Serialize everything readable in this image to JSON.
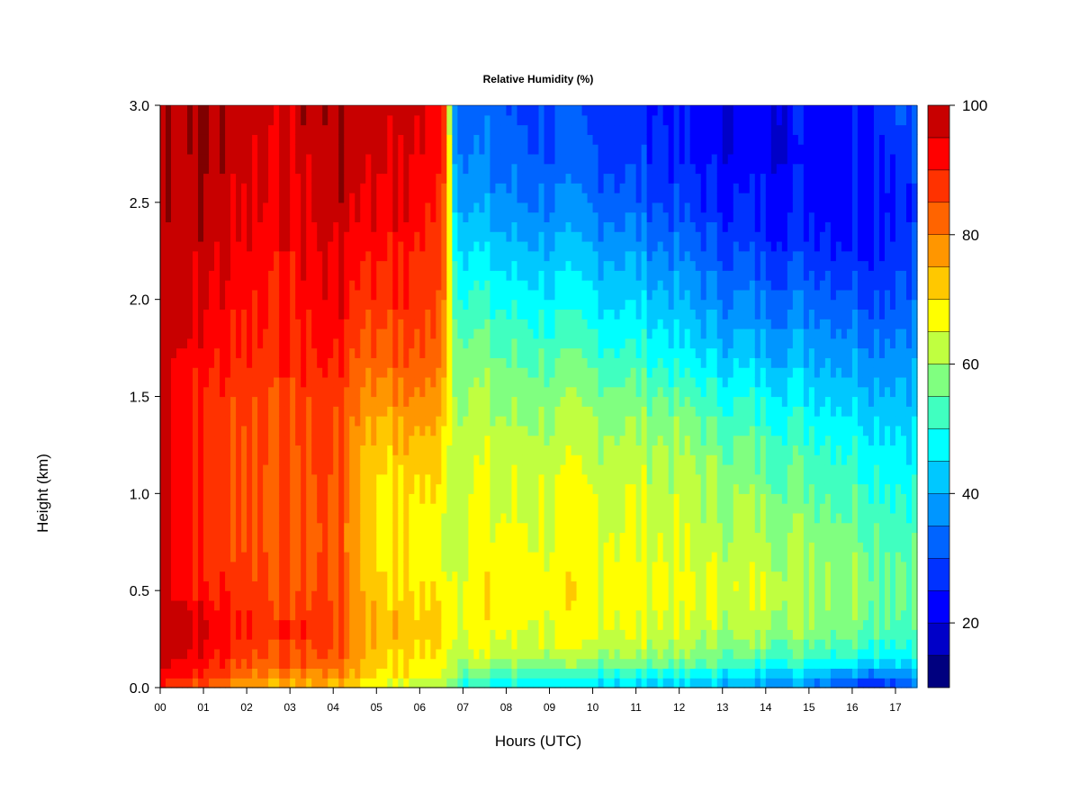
{
  "chart_data": {
    "type": "heatmap",
    "title": "Relative Humidity (%)",
    "xlabel": "Hours (UTC)",
    "ylabel": "Height (km)",
    "xlim": [
      0,
      17.5
    ],
    "ylim": [
      0,
      3.0
    ],
    "x_tick_values": [
      0,
      1,
      2,
      3,
      4,
      5,
      6,
      7,
      8,
      9,
      10,
      11,
      12,
      13,
      14,
      15,
      16,
      17
    ],
    "x_tick_labels": [
      "00",
      "01",
      "02",
      "03",
      "04",
      "05",
      "06",
      "07",
      "08",
      "09",
      "10",
      "11",
      "12",
      "13",
      "14",
      "15",
      "16",
      "17"
    ],
    "y_tick_values": [
      0.0,
      0.5,
      1.0,
      1.5,
      2.0,
      2.5,
      3.0
    ],
    "y_tick_labels": [
      "0.0",
      "0.5",
      "1.0",
      "1.5",
      "2.0",
      "2.5",
      "3.0"
    ],
    "heights_km": [
      0.02,
      0.08,
      0.15,
      0.3,
      0.5,
      0.75,
      1.0,
      1.25,
      1.5,
      1.75,
      2.0,
      2.25,
      2.5,
      2.75,
      3.0
    ],
    "hours_utc": [
      0,
      0.5,
      1,
      1.5,
      2,
      2.5,
      3,
      3.5,
      4,
      4.5,
      5,
      5.5,
      6,
      6.5,
      7,
      7.5,
      8,
      8.5,
      9,
      9.5,
      10,
      10.5,
      11,
      11.5,
      12,
      12.5,
      13,
      13.5,
      14,
      14.5,
      15,
      15.5,
      16,
      16.5,
      17,
      17.5
    ],
    "colorbar": {
      "min": 10,
      "max": 100,
      "step": 5,
      "tick_values": [
        20,
        40,
        60,
        80,
        100
      ],
      "tick_labels": [
        "20",
        "40",
        "60",
        "80",
        "100"
      ],
      "colors": [
        "#00007F",
        "#0000C8",
        "#0000FF",
        "#0032FF",
        "#0064FF",
        "#0096FF",
        "#00C8FF",
        "#00FFFF",
        "#40FFC0",
        "#80FF80",
        "#C0FF40",
        "#FFFF00",
        "#FFC800",
        "#FF9600",
        "#FF6400",
        "#FF3200",
        "#FF0000",
        "#C80000",
        "#7F0000"
      ]
    },
    "profiles": [
      {
        "hour": 0,
        "rh": [
          90,
          95,
          100,
          100,
          100,
          100,
          100,
          100,
          100,
          100,
          100,
          100,
          100,
          100,
          100
        ]
      },
      {
        "hour": 1,
        "rh": [
          85,
          90,
          92,
          96,
          90,
          88,
          87,
          88,
          89,
          92,
          95,
          97,
          99,
          100,
          100
        ]
      },
      {
        "hour": 2,
        "rh": [
          78,
          82,
          86,
          90,
          88,
          86,
          85,
          86,
          87,
          90,
          92,
          94,
          96,
          97,
          98
        ]
      },
      {
        "hour": 3,
        "rh": [
          75,
          80,
          84,
          88,
          85,
          83,
          84,
          85,
          86,
          89,
          90,
          92,
          94,
          95,
          97
        ]
      },
      {
        "hour": 4,
        "rh": [
          76,
          80,
          85,
          88,
          86,
          85,
          86,
          87,
          88,
          92,
          95,
          96,
          98,
          99,
          100
        ]
      },
      {
        "hour": 4.7,
        "rh": [
          70,
          74,
          76,
          78,
          76,
          74,
          74,
          76,
          80,
          84,
          88,
          92,
          95,
          97,
          98
        ]
      },
      {
        "hour": 5,
        "rh": [
          66,
          70,
          72,
          75,
          72,
          70,
          70,
          72,
          78,
          84,
          88,
          92,
          95,
          97,
          98
        ]
      },
      {
        "hour": 6,
        "rh": [
          64,
          68,
          70,
          72,
          70,
          68,
          70,
          74,
          80,
          86,
          88,
          90,
          93,
          95,
          97
        ]
      },
      {
        "hour": 6.6,
        "rh": [
          62,
          66,
          68,
          70,
          68,
          66,
          68,
          70,
          75,
          80,
          82,
          84,
          86,
          88,
          88
        ]
      },
      {
        "hour": 6.8,
        "rh": [
          58,
          62,
          64,
          66,
          66,
          64,
          64,
          62,
          60,
          58,
          54,
          50,
          45,
          40,
          38
        ]
      },
      {
        "hour": 7,
        "rh": [
          52,
          58,
          64,
          68,
          68,
          66,
          66,
          64,
          62,
          58,
          52,
          46,
          40,
          36,
          34
        ]
      },
      {
        "hour": 8,
        "rh": [
          48,
          54,
          62,
          66,
          68,
          66,
          64,
          62,
          58,
          54,
          48,
          42,
          36,
          32,
          30
        ]
      },
      {
        "hour": 10,
        "rh": [
          46,
          52,
          60,
          66,
          68,
          66,
          65,
          62,
          58,
          52,
          46,
          40,
          34,
          30,
          28
        ]
      },
      {
        "hour": 11,
        "rh": [
          46,
          52,
          60,
          66,
          67,
          66,
          64,
          62,
          57,
          50,
          44,
          38,
          32,
          28,
          27
        ]
      },
      {
        "hour": 12,
        "rh": [
          44,
          50,
          58,
          64,
          66,
          64,
          62,
          60,
          54,
          46,
          40,
          34,
          28,
          25,
          24
        ]
      },
      {
        "hour": 13,
        "rh": [
          42,
          48,
          56,
          62,
          64,
          62,
          60,
          56,
          50,
          42,
          36,
          30,
          25,
          22,
          22
        ]
      },
      {
        "hour": 14,
        "rh": [
          40,
          46,
          54,
          62,
          64,
          62,
          58,
          54,
          48,
          40,
          34,
          28,
          24,
          22,
          22
        ]
      },
      {
        "hour": 15,
        "rh": [
          38,
          44,
          52,
          60,
          62,
          60,
          56,
          52,
          46,
          40,
          34,
          28,
          24,
          23,
          24
        ]
      },
      {
        "hour": 16,
        "rh": [
          32,
          40,
          50,
          58,
          60,
          58,
          54,
          50,
          44,
          38,
          32,
          26,
          24,
          24,
          26
        ]
      },
      {
        "hour": 16.5,
        "rh": [
          28,
          38,
          48,
          56,
          58,
          56,
          52,
          48,
          42,
          36,
          30,
          26,
          24,
          25,
          28
        ]
      },
      {
        "hour": 17.5,
        "rh": [
          34,
          42,
          48,
          54,
          56,
          54,
          50,
          46,
          42,
          38,
          34,
          30,
          28,
          30,
          34
        ]
      }
    ]
  }
}
